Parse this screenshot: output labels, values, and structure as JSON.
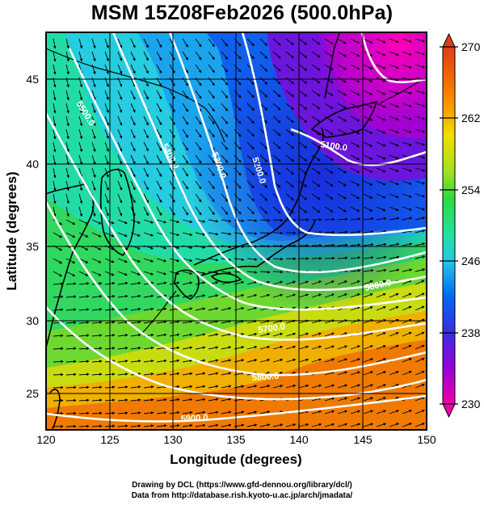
{
  "title": "MSM 15Z08Feb2026 (500.0hPa)",
  "xlabel": "Longitude (degrees)",
  "ylabel": "Latitude  (degrees)",
  "credits": {
    "line1": "Drawing by DCL (https://www.gfd-dennou.org/library/dcl/)",
    "line2": "Data from http://database.rish.kyoto-u.ac.jp/arch/jmadata/"
  },
  "map": {
    "lon_range": [
      120,
      150
    ],
    "lat_range": [
      22.4,
      47.6
    ],
    "x_ticks": [
      120,
      125,
      130,
      135,
      140,
      145,
      150
    ],
    "y_ticks": [
      25,
      30,
      35,
      40,
      45
    ],
    "grid": true,
    "contour_labels": [
      "5100.0",
      "5200.0",
      "5300.0",
      "5400.0",
      "5500.0",
      "5600.0",
      "5700.0",
      "5800.0",
      "5900.0"
    ]
  },
  "colorbar": {
    "min": 230,
    "max": 270,
    "tick_labels": [
      "270",
      "262",
      "254",
      "246",
      "238",
      "230"
    ],
    "colors": [
      "#ee00a8",
      "#9a00d8",
      "#3a2ee0",
      "#0068f0",
      "#22c8e8",
      "#22e2a0",
      "#30d840",
      "#a0e020",
      "#f0e000",
      "#f8a000",
      "#f07000",
      "#e03c1c"
    ]
  }
}
